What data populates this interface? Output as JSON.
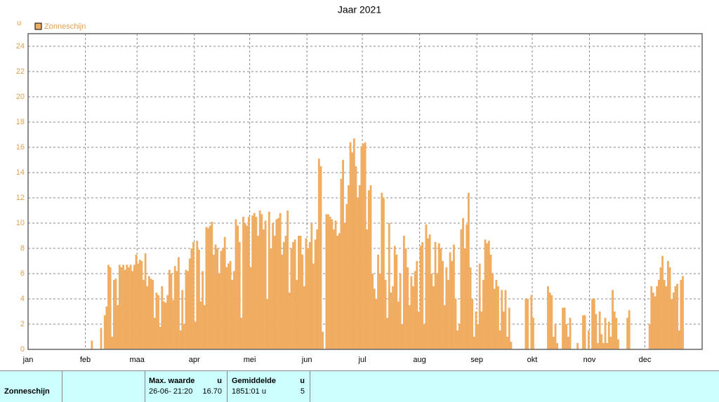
{
  "chart_data": {
    "type": "bar",
    "title": "Jaar 2021",
    "y_label": "u",
    "series": [
      {
        "name": "Zonneschijn",
        "color": "#f0ad62",
        "values": [
          0,
          0,
          0,
          0,
          0,
          0,
          0,
          0,
          0,
          0,
          0,
          0,
          0,
          0,
          0,
          0,
          0,
          0,
          0,
          0,
          0,
          0,
          0,
          0,
          0,
          0,
          0,
          0,
          0,
          0,
          0,
          0,
          0,
          0,
          0.7,
          0,
          0,
          0,
          0,
          1.7,
          0,
          2.7,
          3.4,
          6.7,
          6.5,
          1.0,
          5.5,
          5.6,
          3.5,
          6.7,
          6.5,
          6.7,
          6.3,
          6.7,
          6.5,
          6.7,
          6.2,
          6.7,
          7.5,
          6.8,
          7.1,
          7.0,
          5.5,
          7.6,
          5.0,
          5.8,
          5.6,
          5.5,
          2.5,
          4.5,
          4.3,
          1.8,
          5.0,
          3.8,
          3.7,
          4.3,
          6.3,
          6.0,
          3.9,
          6.6,
          6.2,
          7.3,
          1.5,
          4.7,
          2.0,
          6.3,
          6.2,
          7.2,
          8.0,
          8.5,
          2.2,
          8.6,
          7.9,
          3.8,
          6.2,
          3.5,
          9.7,
          9.6,
          9.8,
          10.1,
          7.5,
          8.3,
          8.0,
          6.0,
          7.8,
          8.0,
          8.9,
          6.5,
          6.8,
          7.0,
          5.5,
          6.2,
          10.3,
          9.8,
          8.5,
          2.5,
          10.5,
          10.0,
          9.8,
          10.5,
          6.5,
          10.6,
          10.8,
          10.5,
          9.0,
          11.0,
          10.7,
          9.5,
          10.2,
          4.0,
          10.9,
          8.0,
          10.0,
          9.0,
          10.3,
          10.4,
          10.8,
          7.5,
          8.5,
          9.0,
          11.0,
          4.5,
          8.0,
          8.5,
          8.7,
          5.5,
          9.0,
          9.0,
          7.5,
          5.0,
          8.8,
          8.0,
          8.5,
          10.0,
          6.8,
          8.7,
          9.5,
          15.1,
          14.5,
          1.4,
          0,
          10.7,
          10.7,
          10.5,
          10.3,
          9.5,
          10.2,
          9.0,
          9.2,
          13.5,
          15.0,
          10.0,
          11.5,
          13.0,
          16.4,
          15.6,
          16.7,
          14.5,
          12.0,
          13.0,
          16.1,
          16.3,
          16.4,
          9.5,
          12.6,
          13.0,
          6.0,
          4.8,
          4.0,
          7.5,
          6.0,
          12.4,
          12.0,
          5.5,
          2.5,
          10.0,
          4.5,
          5.0,
          8.2,
          7.5,
          3.8,
          6.0,
          2.0,
          9.0,
          8.0,
          6.5,
          3.5,
          5.8,
          5.0,
          6.2,
          7.0,
          3.0,
          8.2,
          8.5,
          2.0,
          9.9,
          8.8,
          9.1,
          6.0,
          5.0,
          8.5,
          6.0,
          8.4,
          8.0,
          7.0,
          3.5,
          6.5,
          5.5,
          7.7,
          7.0,
          8.3,
          4.0,
          1.5,
          2.0,
          9.5,
          10.4,
          8.0,
          9.9,
          12.4,
          6.5,
          4.0,
          1.0,
          3.0,
          2.0,
          6.8,
          3.0,
          5.5,
          8.7,
          8.4,
          8.6,
          7.5,
          6.0,
          4.8,
          5.5,
          5.0,
          1.5,
          4.7,
          3.0,
          4.7,
          1.0,
          3.3,
          0.6,
          0,
          0,
          0,
          0,
          0,
          0,
          0,
          4.0,
          4.0,
          0,
          4.3,
          2.5,
          0,
          0,
          0,
          0,
          0,
          0,
          0,
          5.0,
          4.5,
          4.3,
          1.0,
          2.0,
          0.5,
          0,
          0,
          3.3,
          3.3,
          2.0,
          1.0,
          2.5,
          0,
          0,
          0,
          0.5,
          0,
          0,
          2.7,
          2.7,
          0,
          1.5,
          0,
          4.0,
          4.0,
          2.8,
          0.5,
          3.0,
          1.2,
          0.5,
          2.5,
          0.5,
          2.2,
          1.0,
          4.7,
          3.0,
          2.5,
          0.8,
          0,
          0,
          0,
          0,
          2.5,
          3.1,
          0,
          0,
          0,
          0,
          0,
          0,
          0,
          0,
          0,
          0,
          2.0,
          5.0,
          4.5,
          4.2,
          5.0,
          5.5,
          6.5,
          7.4,
          5.5,
          5.0,
          7.0,
          6.5,
          4.0,
          4.5,
          5.0,
          5.2,
          1.5,
          5.5,
          5.8,
          0,
          0,
          0,
          0,
          0,
          0,
          0,
          0,
          0,
          0
        ]
      }
    ],
    "xlim": [
      0,
      365
    ],
    "xticks": [
      {
        "value": 0,
        "label": "jan"
      },
      {
        "value": 31,
        "label": "feb"
      },
      {
        "value": 59,
        "label": "maa"
      },
      {
        "value": 90,
        "label": "apr"
      },
      {
        "value": 120,
        "label": "mei"
      },
      {
        "value": 151,
        "label": "jun"
      },
      {
        "value": 181,
        "label": "jul"
      },
      {
        "value": 212,
        "label": "aug"
      },
      {
        "value": 243,
        "label": "sep"
      },
      {
        "value": 273,
        "label": "okt"
      },
      {
        "value": 304,
        "label": "nov"
      },
      {
        "value": 334,
        "label": "dec"
      }
    ],
    "ylim": [
      0,
      25
    ],
    "yticks": [
      0,
      2,
      4,
      6,
      8,
      10,
      12,
      14,
      16,
      18,
      20,
      22,
      24
    ],
    "grid": true
  },
  "summary": {
    "row_label": "Zonneschijn",
    "max_header": "Max. waarde",
    "max_unit": "u",
    "max_date": "26-06- 21:20",
    "max_value": "16.70",
    "avg_header": "Gemiddelde",
    "avg_unit": "u",
    "avg_total": "1851:01 u",
    "avg_value": "5"
  }
}
